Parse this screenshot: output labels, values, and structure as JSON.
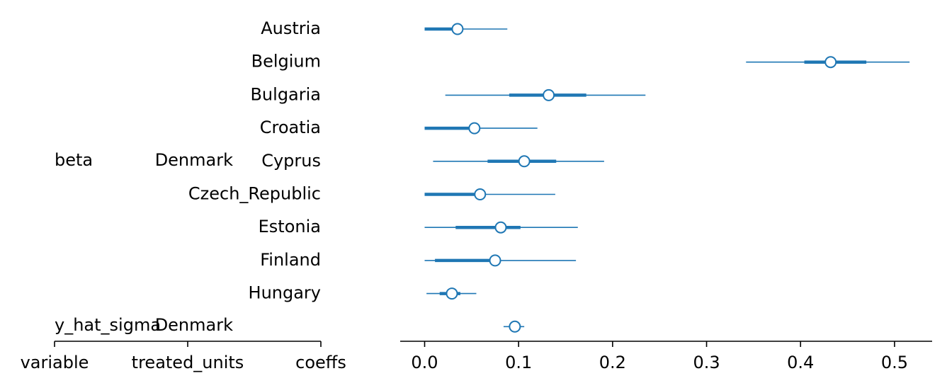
{
  "chart_data": {
    "type": "forest",
    "left_axis": {
      "columns": [
        "variable",
        "treated_units",
        "coeffs"
      ]
    },
    "groups": [
      {
        "variable": "beta",
        "treated_units": "Denmark"
      },
      {
        "variable": "y_hat_sigma",
        "treated_units": "Denmark"
      }
    ],
    "rows": [
      {
        "label": "Austria",
        "mean": 0.035,
        "hdi_inner": [
          0.0,
          0.035
        ],
        "hdi_outer": [
          0.0,
          0.088
        ]
      },
      {
        "label": "Belgium",
        "mean": 0.432,
        "hdi_inner": [
          0.404,
          0.47
        ],
        "hdi_outer": [
          0.342,
          0.516
        ]
      },
      {
        "label": "Bulgaria",
        "mean": 0.132,
        "hdi_inner": [
          0.09,
          0.172
        ],
        "hdi_outer": [
          0.022,
          0.235
        ]
      },
      {
        "label": "Croatia",
        "mean": 0.053,
        "hdi_inner": [
          0.0,
          0.053
        ],
        "hdi_outer": [
          0.0,
          0.12
        ]
      },
      {
        "label": "Cyprus",
        "mean": 0.106,
        "hdi_inner": [
          0.067,
          0.14
        ],
        "hdi_outer": [
          0.009,
          0.191
        ]
      },
      {
        "label": "Czech_Republic",
        "mean": 0.059,
        "hdi_inner": [
          0.0,
          0.059
        ],
        "hdi_outer": [
          0.0,
          0.139
        ]
      },
      {
        "label": "Estonia",
        "mean": 0.081,
        "hdi_inner": [
          0.033,
          0.102
        ],
        "hdi_outer": [
          0.0,
          0.163
        ]
      },
      {
        "label": "Finland",
        "mean": 0.075,
        "hdi_inner": [
          0.011,
          0.075
        ],
        "hdi_outer": [
          0.0,
          0.161
        ]
      },
      {
        "label": "Hungary",
        "mean": 0.029,
        "hdi_inner": [
          0.016,
          0.038
        ],
        "hdi_outer": [
          0.002,
          0.055
        ]
      },
      {
        "label": "",
        "mean": 0.096,
        "hdi_inner": [
          0.092,
          0.1
        ],
        "hdi_outer": [
          0.084,
          0.106
        ]
      }
    ],
    "x_ticks": [
      "0.0",
      "0.1",
      "0.2",
      "0.3",
      "0.4",
      "0.5"
    ],
    "x_tick_values": [
      0.0,
      0.1,
      0.2,
      0.3,
      0.4,
      0.5
    ],
    "xlim": [
      -0.026,
      0.54
    ],
    "color": "#1f77b4"
  }
}
